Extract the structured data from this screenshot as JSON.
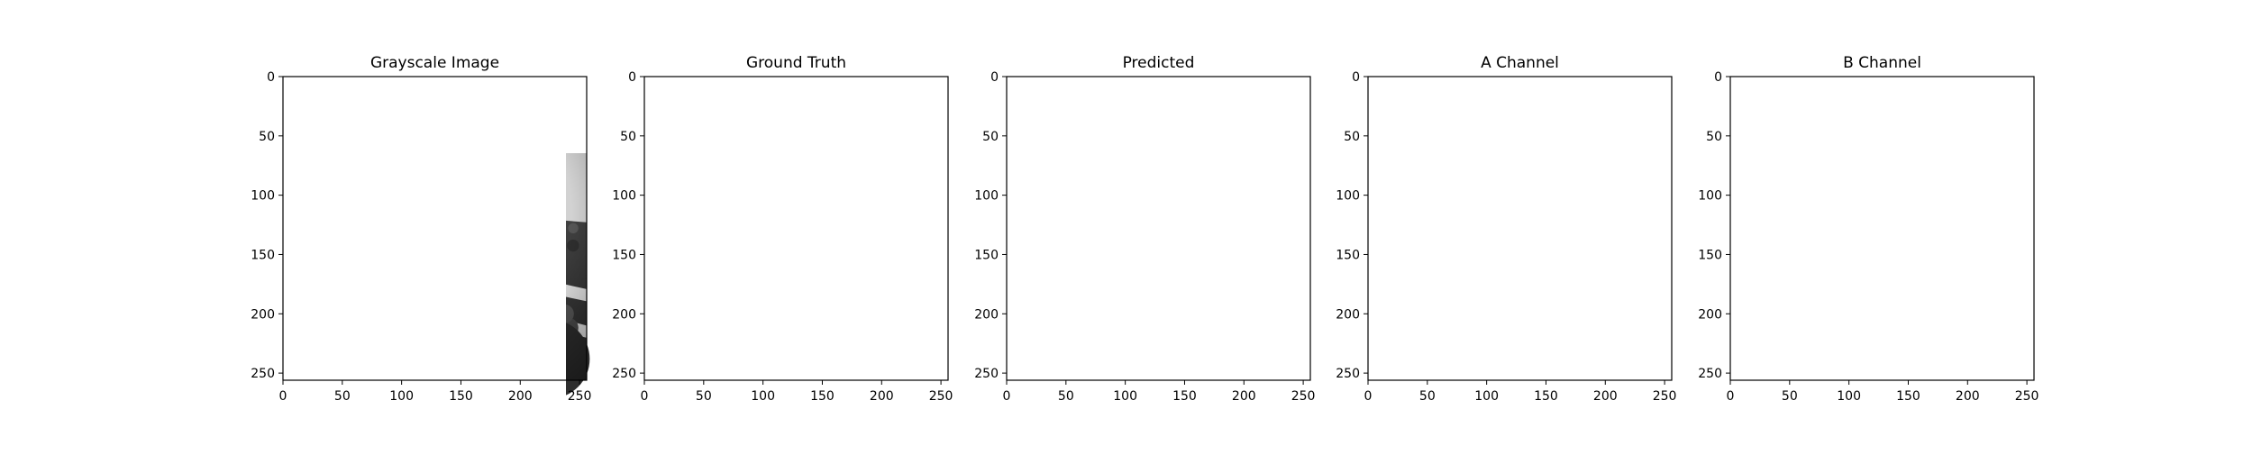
{
  "chart_data": {
    "type": "image_grid",
    "shared_axes": {
      "x_ticks": [
        0,
        50,
        100,
        150,
        200,
        250
      ],
      "y_ticks": [
        0,
        50,
        100,
        150,
        200,
        250
      ],
      "xlim": [
        0,
        256
      ],
      "ylim": [
        256,
        0
      ],
      "grid": false
    },
    "panels": [
      {
        "title": "Grayscale Image",
        "image": "lecture-hall-grayscale"
      },
      {
        "title": "Ground Truth",
        "image": "lecture-hall-color"
      },
      {
        "title": "Predicted",
        "image": "lecture-hall-color-predicted"
      },
      {
        "title": "A Channel",
        "image": "lecture-hall-a-channel"
      },
      {
        "title": "B Channel",
        "image": "lecture-hall-b-channel"
      }
    ]
  }
}
